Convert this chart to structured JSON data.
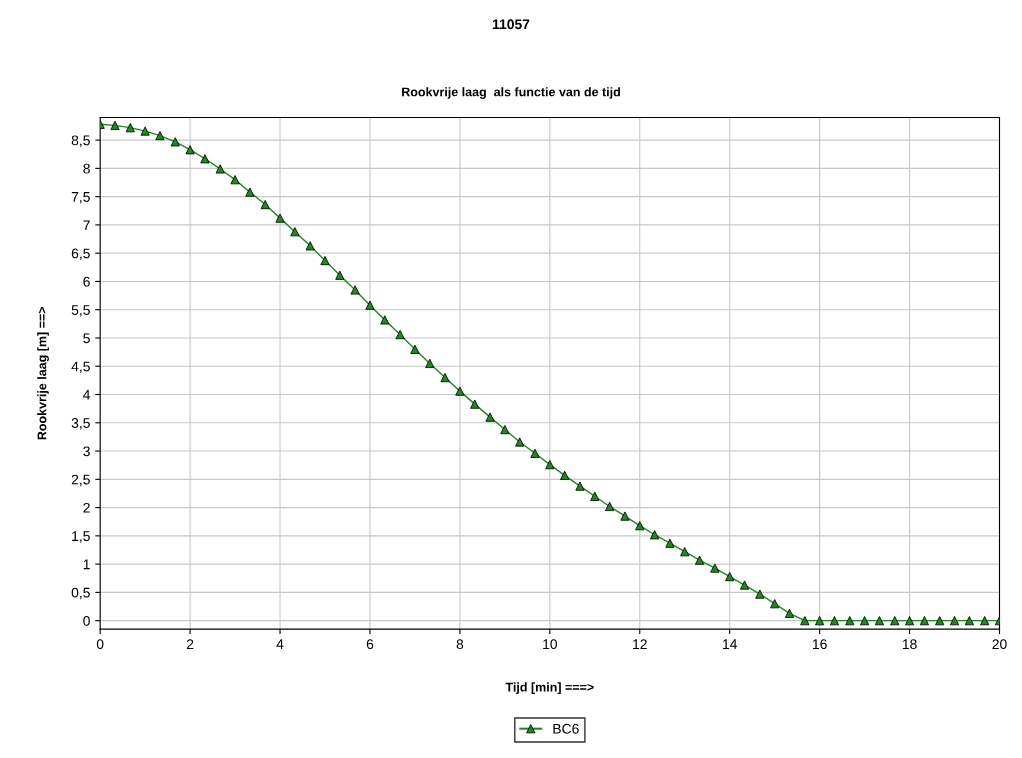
{
  "chart_data": {
    "type": "line",
    "title": "11057",
    "subtitle": "Rookvrije laag  als functie van de tijd",
    "xlabel": "Tijd [min] ===>",
    "ylabel": "Rookvrije laag [m] ==>",
    "x": [
      0,
      0.33,
      0.67,
      1,
      1.33,
      1.67,
      2,
      2.33,
      2.67,
      3,
      3.33,
      3.67,
      4,
      4.33,
      4.67,
      5,
      5.33,
      5.67,
      6,
      6.33,
      6.67,
      7,
      7.33,
      7.67,
      8,
      8.33,
      8.67,
      9,
      9.33,
      9.67,
      10,
      10.33,
      10.67,
      11,
      11.33,
      11.67,
      12,
      12.33,
      12.67,
      13,
      13.33,
      13.67,
      14,
      14.33,
      14.67,
      15,
      15.33,
      15.67,
      16,
      16.33,
      16.67,
      17,
      17.33,
      17.67,
      18,
      18.33,
      18.67,
      19,
      19.33,
      19.67,
      20
    ],
    "series": [
      {
        "name": "BC6",
        "color": "#1f8a1f",
        "values": [
          8.78,
          8.76,
          8.72,
          8.66,
          8.58,
          8.47,
          8.33,
          8.17,
          7.99,
          7.8,
          7.58,
          7.36,
          7.12,
          6.88,
          6.63,
          6.37,
          6.11,
          5.85,
          5.58,
          5.32,
          5.06,
          4.8,
          4.55,
          4.3,
          4.06,
          3.83,
          3.6,
          3.38,
          3.16,
          2.96,
          2.76,
          2.57,
          2.38,
          2.2,
          2.02,
          1.85,
          1.68,
          1.52,
          1.37,
          1.22,
          1.07,
          0.93,
          0.78,
          0.63,
          0.47,
          0.3,
          0.13,
          0,
          0,
          0,
          0,
          0,
          0,
          0,
          0,
          0,
          0,
          0,
          0,
          0,
          0
        ]
      }
    ],
    "xlim": [
      0,
      20
    ],
    "xticks": [
      0,
      2,
      4,
      6,
      8,
      10,
      12,
      14,
      16,
      18,
      20
    ],
    "ylim": [
      -0.15,
      8.9
    ],
    "yticks": [
      0,
      {
        "value": 0.5,
        "label": "0,5"
      },
      1,
      {
        "value": 1.5,
        "label": "1,5"
      },
      2,
      {
        "value": 2.5,
        "label": "2,5"
      },
      3,
      {
        "value": 3.5,
        "label": "3,5"
      },
      4,
      {
        "value": 4.5,
        "label": "4,5"
      },
      5,
      {
        "value": 5.5,
        "label": "5,5"
      },
      6,
      {
        "value": 6.5,
        "label": "6,5"
      },
      7,
      {
        "value": 7.5,
        "label": "7,5"
      },
      8,
      {
        "value": 8.5,
        "label": "8,5"
      }
    ],
    "grid": true,
    "legend": "bottom",
    "marker": "triangle",
    "line_style": "solid"
  }
}
